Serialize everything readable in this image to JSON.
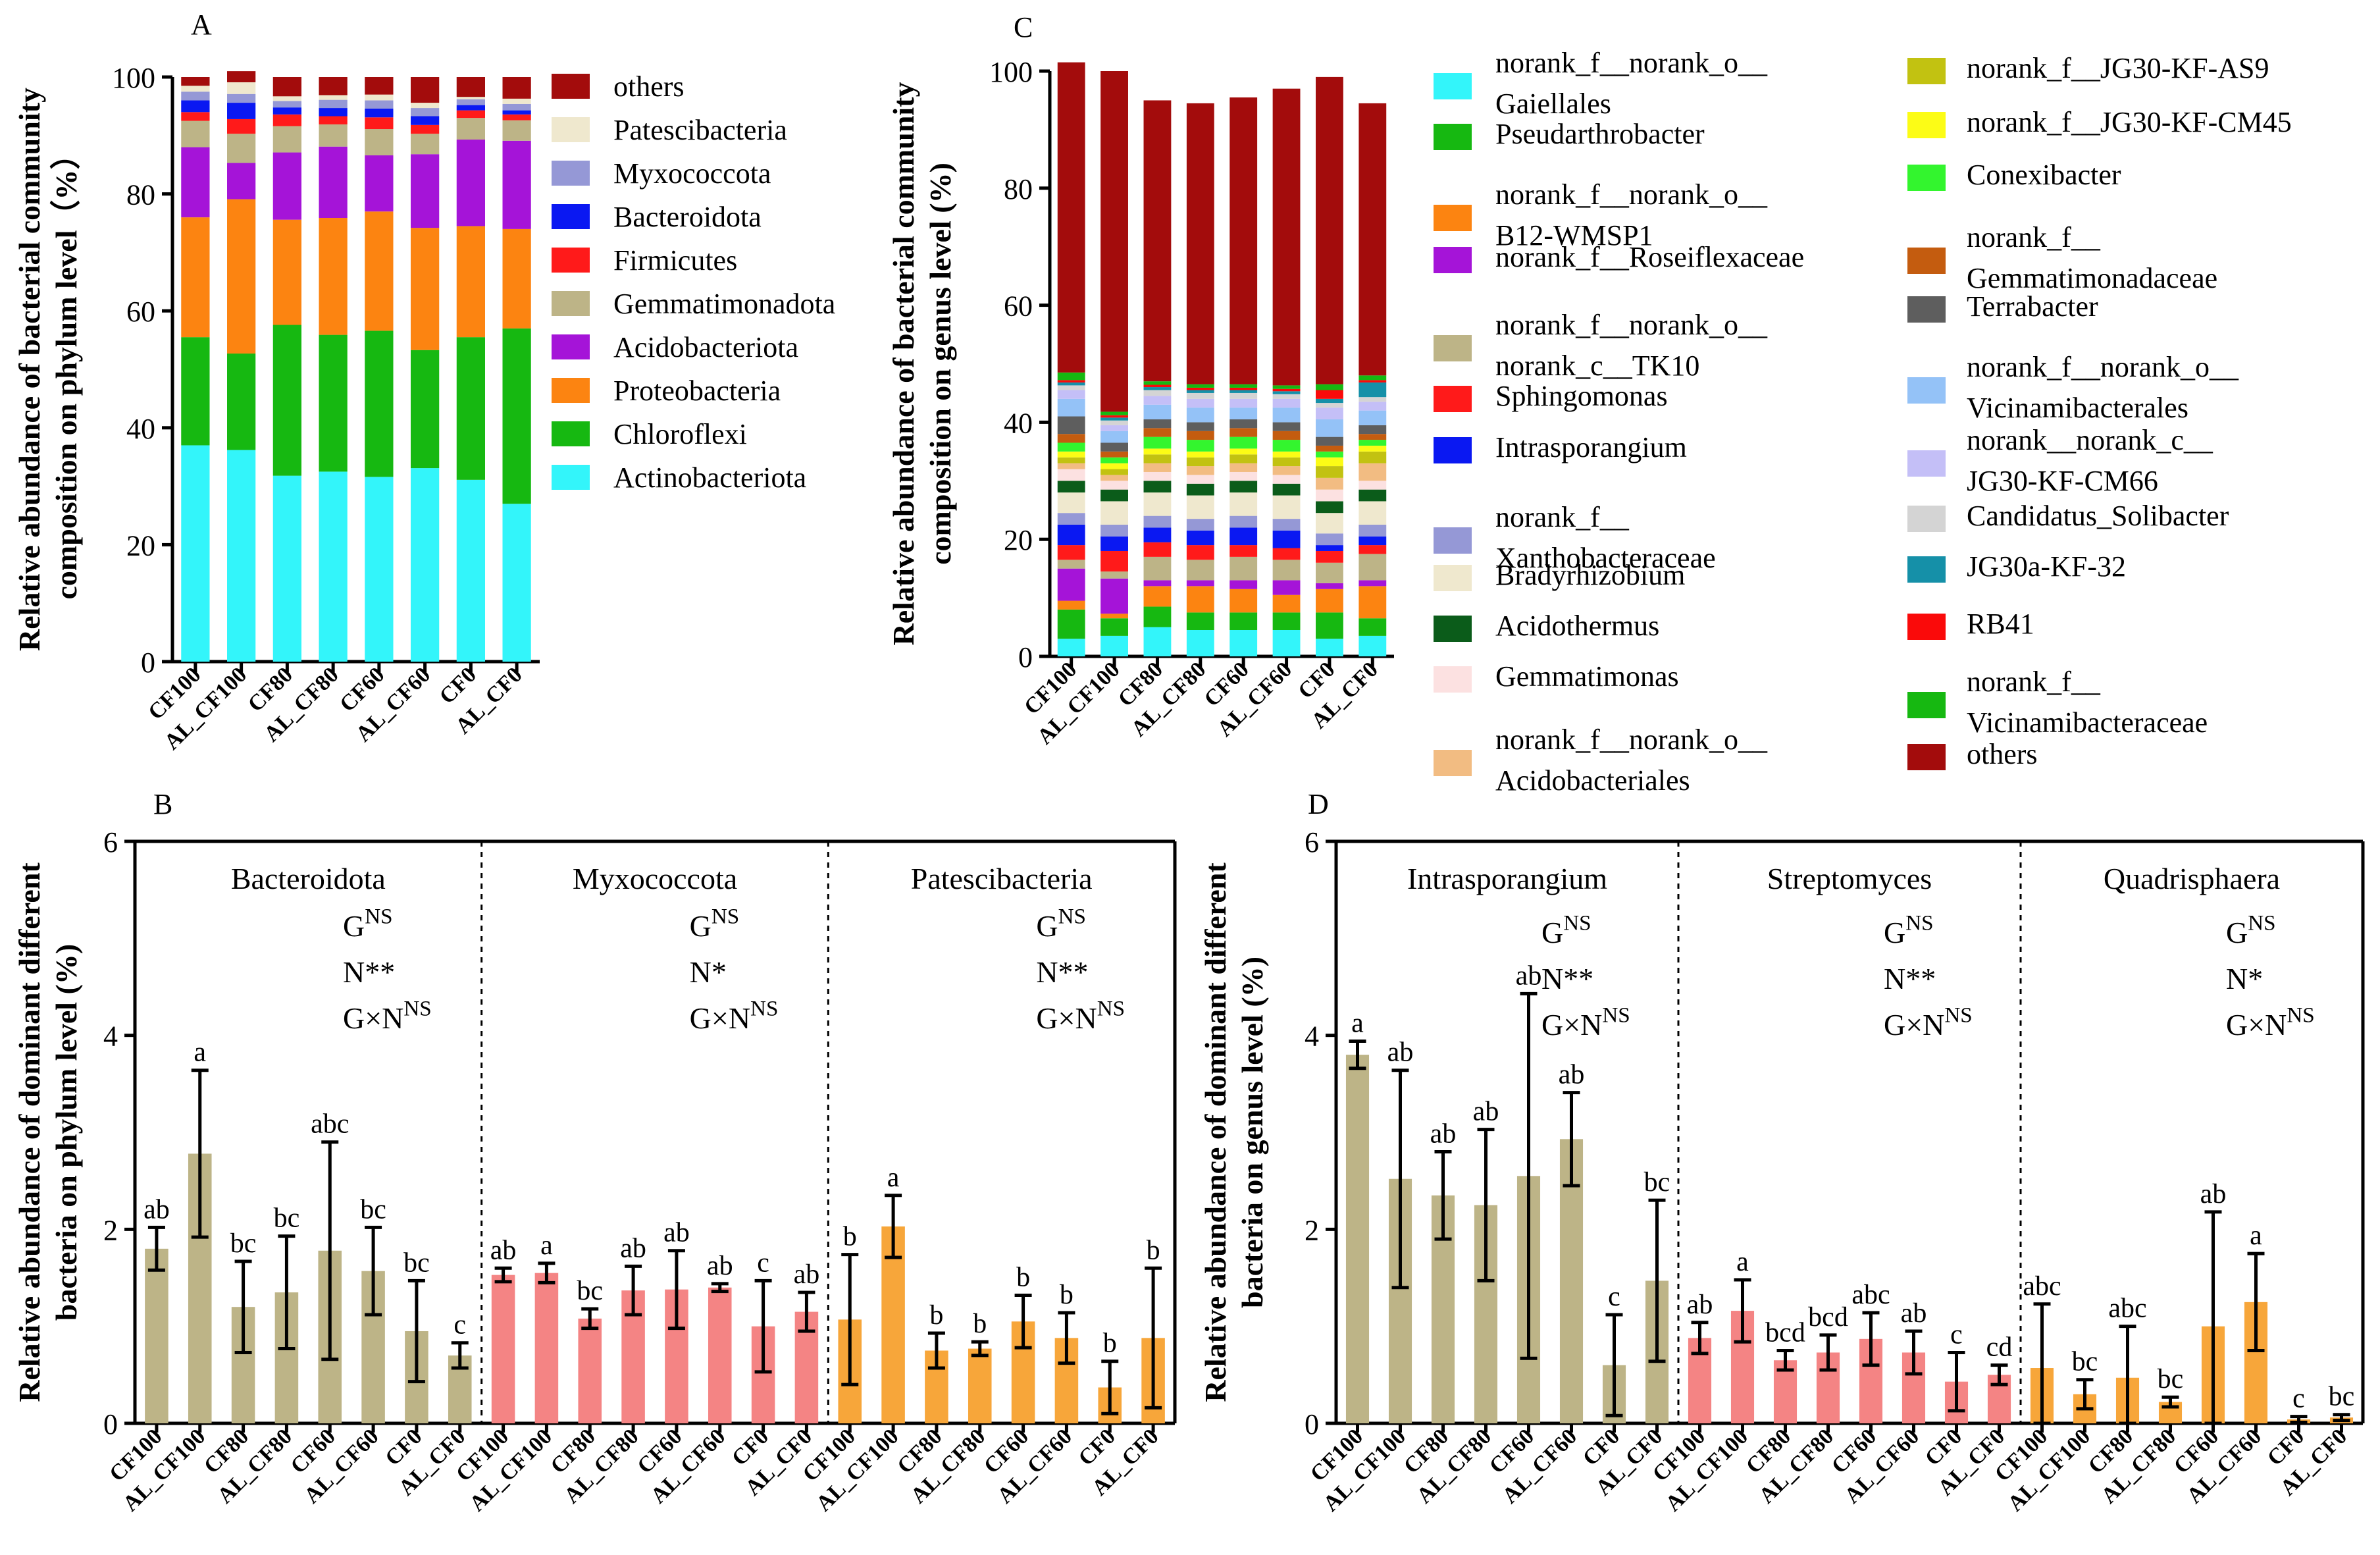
{
  "colors": {
    "errorbar": "#000000",
    "olive": "#BDB487",
    "pink": "#F48484",
    "orange": "#F7A63A"
  },
  "chart_data": [
    {
      "id": "A",
      "panel_label": "A",
      "type": "bar",
      "stacked": true,
      "title": "",
      "xlabel": "",
      "ylabel_line1": "Relative abundance of bacterial community",
      "ylabel_line2": "composition on phylum level（%）",
      "ylim": [
        0,
        100
      ],
      "yticks": [
        0,
        20,
        40,
        60,
        80,
        100
      ],
      "categories": [
        "CF100",
        "AL_CF100",
        "CF80",
        "AL_CF80",
        "CF60",
        "AL_CF60",
        "CF0",
        "AL_CF0"
      ],
      "series": [
        {
          "name": "Actinobacteriota",
          "color": "#33F5FA",
          "values": [
            37.0,
            36.2,
            31.8,
            32.5,
            31.6,
            33.1,
            31.1,
            27.0
          ]
        },
        {
          "name": "Chloroflexi",
          "color": "#16B811",
          "values": [
            18.5,
            16.5,
            25.8,
            23.4,
            25.0,
            20.2,
            24.4,
            30.0
          ]
        },
        {
          "name": "Proteobacteria",
          "color": "#FC8411",
          "values": [
            20.5,
            26.4,
            18.0,
            20.0,
            20.4,
            20.9,
            19.0,
            17.0
          ]
        },
        {
          "name": "Acidobacteriota",
          "color": "#A514D8",
          "values": [
            12.0,
            6.2,
            11.5,
            12.2,
            9.6,
            12.6,
            14.8,
            15.1
          ]
        },
        {
          "name": "Gemmatimonadota",
          "color": "#BDB487",
          "values": [
            4.5,
            5.0,
            4.5,
            3.8,
            4.5,
            3.5,
            3.7,
            3.5
          ]
        },
        {
          "name": "Firmicutes",
          "color": "#FF1A1A",
          "values": [
            1.5,
            2.5,
            2.0,
            1.4,
            2.0,
            1.5,
            1.3,
            1.0
          ]
        },
        {
          "name": "Bacteroidota",
          "color": "#0A18F2",
          "values": [
            2.0,
            2.8,
            1.2,
            1.4,
            1.5,
            1.5,
            0.9,
            0.7
          ]
        },
        {
          "name": "Myxococcota",
          "color": "#9598D6",
          "values": [
            1.5,
            1.5,
            1.1,
            1.4,
            1.4,
            1.4,
            1.0,
            1.1
          ]
        },
        {
          "name": "Patescibacteria",
          "color": "#EFE8CE",
          "values": [
            1.0,
            2.0,
            0.8,
            0.8,
            1.0,
            0.9,
            0.4,
            0.9
          ]
        },
        {
          "name": "others",
          "color": "#A30C0C",
          "values": [
            1.5,
            1.9,
            3.3,
            3.1,
            3.0,
            4.4,
            3.4,
            3.7
          ]
        }
      ],
      "legend_order": [
        "others",
        "Patescibacteria",
        "Myxococcota",
        "Bacteroidota",
        "Firmicutes",
        "Gemmatimonadota",
        "Acidobacteriota",
        "Proteobacteria",
        "Chloroflexi",
        "Actinobacteriota"
      ]
    },
    {
      "id": "C",
      "panel_label": "C",
      "type": "bar",
      "stacked": true,
      "title": "",
      "xlabel": "",
      "ylabel_line1": "Relative abundance of bacterial community",
      "ylabel_line2": "composition on genus level (%)",
      "ylim": [
        0,
        100
      ],
      "yticks": [
        0,
        20,
        40,
        60,
        80,
        100
      ],
      "categories": [
        "CF100",
        "AL_CF100",
        "CF80",
        "AL_CF80",
        "CF60",
        "AL_CF60",
        "CF0",
        "AL_CF0"
      ],
      "series": [
        {
          "name": "norank_f__norank_o__ Gaiellales",
          "color": "#33F5FA",
          "values": [
            3.0,
            3.5,
            5.0,
            4.5,
            4.5,
            4.5,
            3.0,
            3.5
          ]
        },
        {
          "name": "Pseudarthrobacter",
          "color": "#16B811",
          "values": [
            5.0,
            3.0,
            3.5,
            3.0,
            3.0,
            3.0,
            4.5,
            3.0
          ]
        },
        {
          "name": "norank_f__norank_o__ B12-WMSP1",
          "color": "#FC8411",
          "values": [
            1.5,
            0.8,
            3.5,
            4.5,
            4.0,
            3.0,
            4.0,
            5.5
          ]
        },
        {
          "name": "norank_f__Roseiflexaceae",
          "color": "#A514D8",
          "values": [
            5.5,
            6.0,
            1.0,
            1.0,
            1.5,
            2.5,
            1.0,
            1.0
          ]
        },
        {
          "name": "norank_f__norank_o__ norank_c__TK10",
          "color": "#BDB487",
          "values": [
            1.5,
            1.2,
            4.0,
            3.5,
            4.0,
            3.5,
            3.5,
            4.5
          ]
        },
        {
          "name": "Sphingomonas",
          "color": "#FF1A1A",
          "values": [
            2.5,
            3.5,
            2.5,
            2.5,
            2.0,
            2.0,
            2.0,
            1.5
          ]
        },
        {
          "name": "Intrasporangium",
          "color": "#0A18F2",
          "values": [
            3.5,
            2.5,
            2.5,
            2.5,
            3.0,
            3.0,
            1.0,
            1.5
          ]
        },
        {
          "name": "norank_f__ Xanthobacteraceae",
          "color": "#9598D6",
          "values": [
            2.0,
            2.0,
            2.0,
            2.0,
            2.0,
            2.0,
            2.0,
            2.0
          ]
        },
        {
          "name": "Bradyrhizobium",
          "color": "#EFE8CE",
          "values": [
            3.5,
            4.0,
            4.0,
            4.0,
            4.0,
            4.0,
            3.5,
            4.0
          ]
        },
        {
          "name": "Acidothermus",
          "color": "#0B5C1A",
          "values": [
            2.0,
            2.0,
            2.0,
            2.0,
            2.0,
            2.0,
            2.0,
            2.0
          ]
        },
        {
          "name": "Gemmatimonas",
          "color": "#FCE1E1",
          "values": [
            2.0,
            1.5,
            1.5,
            1.5,
            1.5,
            1.5,
            2.0,
            1.5
          ]
        },
        {
          "name": "norank_f__norank_o__ Acidobacteriales",
          "color": "#F2BC82",
          "values": [
            1.0,
            1.0,
            1.5,
            1.5,
            1.5,
            1.5,
            2.0,
            3.0
          ]
        },
        {
          "name": "norank_f__JG30-KF-AS9",
          "color": "#C2C211",
          "values": [
            1.0,
            1.0,
            1.5,
            1.5,
            1.5,
            1.5,
            2.0,
            2.0
          ]
        },
        {
          "name": "norank_f__JG30-KF-CM45",
          "color": "#FCFC16",
          "values": [
            1.0,
            1.0,
            1.0,
            1.0,
            1.0,
            1.0,
            1.5,
            1.0
          ]
        },
        {
          "name": "Conexibacter",
          "color": "#33F52E",
          "values": [
            1.5,
            1.0,
            2.0,
            2.0,
            2.0,
            2.0,
            1.0,
            1.0
          ]
        },
        {
          "name": "norank_f__ Gemmatimonadaceae",
          "color": "#C45C0F",
          "values": [
            1.5,
            1.0,
            1.5,
            1.5,
            1.5,
            1.5,
            1.0,
            1.0
          ]
        },
        {
          "name": "Terrabacter",
          "color": "#5E5E5E",
          "values": [
            3.0,
            1.5,
            1.5,
            1.5,
            1.5,
            1.5,
            1.5,
            1.5
          ]
        },
        {
          "name": "norank_f__norank_o__ Vicinamibacterales",
          "color": "#94C2F7",
          "values": [
            3.0,
            2.0,
            2.5,
            2.5,
            2.0,
            2.5,
            3.0,
            2.5
          ]
        },
        {
          "name": "norank__norank_c__ JG30-KF-CM66",
          "color": "#C4BFF7",
          "values": [
            1.5,
            1.0,
            1.5,
            1.5,
            1.5,
            1.5,
            2.0,
            1.5
          ]
        },
        {
          "name": "Candidatus_Solibacter",
          "color": "#D4D4D4",
          "values": [
            0.8,
            0.8,
            1.0,
            1.0,
            1.0,
            0.8,
            0.8,
            0.8
          ]
        },
        {
          "name": "JG30a-KF-32",
          "color": "#1590A8",
          "values": [
            0.5,
            0.5,
            0.5,
            0.5,
            0.5,
            0.5,
            0.7,
            2.5
          ]
        },
        {
          "name": "RB41",
          "color": "#FA0A0A",
          "values": [
            0.4,
            0.4,
            0.4,
            0.4,
            0.4,
            0.4,
            1.5,
            0.4
          ]
        },
        {
          "name": "norank_f__ Vicinamibacteraceae",
          "color": "#16B811",
          "values": [
            1.3,
            0.6,
            0.6,
            0.6,
            0.6,
            0.6,
            1.0,
            0.8
          ]
        },
        {
          "name": "others",
          "color": "#A30C0C",
          "values": [
            53.0,
            58.2,
            48.0,
            48.0,
            49.0,
            50.7,
            52.5,
            46.5
          ]
        }
      ],
      "legend_left": [
        {
          "line1": "norank_f__norank_o__",
          "line2": "Gaiellales",
          "color": "#33F5FA"
        },
        {
          "line1": "Pseudarthrobacter",
          "line2": "",
          "color": "#16B811"
        },
        {
          "line1": "norank_f__norank_o__",
          "line2": "B12-WMSP1",
          "color": "#FC8411"
        },
        {
          "line1": "norank_f__Roseiflexaceae",
          "line2": "",
          "color": "#A514D8"
        },
        {
          "line1": "norank_f__norank_o__",
          "line2": "norank_c__TK10",
          "color": "#BDB487"
        },
        {
          "line1": "Sphingomonas",
          "line2": "",
          "color": "#FF1A1A"
        },
        {
          "line1": "Intrasporangium",
          "line2": "",
          "color": "#0A18F2"
        },
        {
          "line1": "norank_f__",
          "line2": "Xanthobacteraceae",
          "color": "#9598D6"
        },
        {
          "line1": "Bradyrhizobium",
          "line2": "",
          "color": "#EFE8CE"
        },
        {
          "line1": "Acidothermus",
          "line2": "",
          "color": "#0B5C1A"
        },
        {
          "line1": "Gemmatimonas",
          "line2": "",
          "color": "#FCE1E1"
        },
        {
          "line1": "norank_f__norank_o__",
          "line2": "Acidobacteriales",
          "color": "#F2BC82"
        }
      ],
      "legend_right": [
        {
          "line1": "norank_f__JG30-KF-AS9",
          "line2": "",
          "color": "#C2C211"
        },
        {
          "line1": "norank_f__JG30-KF-CM45",
          "line2": "",
          "color": "#FCFC16"
        },
        {
          "line1": "Conexibacter",
          "line2": "",
          "color": "#33F52E"
        },
        {
          "line1": "norank_f__",
          "line2": "Gemmatimonadaceae",
          "color": "#C45C0F"
        },
        {
          "line1": "Terrabacter",
          "line2": "",
          "color": "#5E5E5E"
        },
        {
          "line1": "norank_f__norank_o__",
          "line2": "Vicinamibacterales",
          "color": "#94C2F7"
        },
        {
          "line1": "norank__norank_c__",
          "line2": "JG30-KF-CM66",
          "color": "#C4BFF7"
        },
        {
          "line1": "Candidatus_Solibacter",
          "line2": "",
          "color": "#D4D4D4"
        },
        {
          "line1": "JG30a-KF-32",
          "line2": "",
          "color": "#1590A8"
        },
        {
          "line1": "RB41",
          "line2": "",
          "color": "#FA0A0A"
        },
        {
          "line1": "norank_f__",
          "line2": "Vicinamibacteraceae",
          "color": "#16B811"
        },
        {
          "line1": "others",
          "line2": "",
          "color": "#A30C0C"
        }
      ]
    },
    {
      "id": "B",
      "panel_label": "B",
      "type": "bar",
      "title": "",
      "xlabel": "",
      "ylabel_line1": "Relative abundance of dominant different",
      "ylabel_line2": "bacteria  on phylum level (%)",
      "ylim": [
        0,
        6
      ],
      "yticks": [
        0,
        2,
        4,
        6
      ],
      "categories": [
        "CF100",
        "AL_CF100",
        "CF80",
        "AL_CF80",
        "CF60",
        "AL_CF60",
        "CF0",
        "AL_CF0"
      ],
      "groups": [
        {
          "name": "Bacteroidota",
          "color": "#BDB487",
          "values": [
            1.8,
            2.78,
            1.2,
            1.35,
            1.78,
            1.57,
            0.95,
            0.7
          ],
          "errors": [
            0.22,
            0.86,
            0.47,
            0.58,
            1.12,
            0.45,
            0.52,
            0.13
          ],
          "letters": [
            "ab",
            "a",
            "bc",
            "bc",
            "abc",
            "bc",
            "bc",
            "c"
          ],
          "stats": {
            "G": "G",
            "G_sup": "NS",
            "N": "N**",
            "N_sup": "",
            "GxN": "G×N",
            "GxN_sup": "NS"
          }
        },
        {
          "name": "Myxococcota",
          "color": "#F48484",
          "values": [
            1.53,
            1.55,
            1.08,
            1.37,
            1.38,
            1.4,
            1.0,
            1.15
          ],
          "errors": [
            0.07,
            0.1,
            0.1,
            0.25,
            0.4,
            0.04,
            0.47,
            0.2
          ],
          "letters": [
            "ab",
            "a",
            "bc",
            "ab",
            "ab",
            "ab",
            "c",
            "ab"
          ],
          "stats": {
            "G": "G",
            "G_sup": "NS",
            "N": "N*",
            "N_sup": "",
            "GxN": "G×N",
            "GxN_sup": "NS"
          }
        },
        {
          "name": "Patescibacteria",
          "color": "#F7A63A",
          "values": [
            1.07,
            2.03,
            0.75,
            0.77,
            1.05,
            0.88,
            0.37,
            0.88
          ],
          "errors": [
            0.67,
            0.32,
            0.18,
            0.07,
            0.27,
            0.26,
            0.27,
            0.72
          ],
          "letters": [
            "b",
            "a",
            "b",
            "b",
            "b",
            "b",
            "b",
            "b"
          ],
          "stats": {
            "G": "G",
            "G_sup": "NS",
            "N": "N**",
            "N_sup": "",
            "GxN": "G×N",
            "GxN_sup": "NS"
          }
        }
      ]
    },
    {
      "id": "D",
      "panel_label": "D",
      "type": "bar",
      "title": "",
      "xlabel": "",
      "ylabel_line1": "Relative abundance of dominant different",
      "ylabel_line2": "bacteria on genus  level (%)",
      "ylim": [
        0,
        6
      ],
      "yticks": [
        0,
        2,
        4,
        6
      ],
      "categories": [
        "CF100",
        "AL_CF100",
        "CF80",
        "AL_CF80",
        "CF60",
        "AL_CF60",
        "CF0",
        "AL_CF0"
      ],
      "groups": [
        {
          "name": "Intrasporangium",
          "color": "#BDB487",
          "values": [
            3.8,
            2.52,
            2.35,
            2.25,
            2.55,
            2.93,
            0.6,
            1.47
          ],
          "errors": [
            0.14,
            1.12,
            0.45,
            0.78,
            1.88,
            0.48,
            0.52,
            0.83
          ],
          "letters": [
            "a",
            "ab",
            "ab",
            "ab",
            "ab",
            "ab",
            "c",
            "bc"
          ],
          "stats": {
            "G": "G",
            "G_sup": "NS",
            "N": "N**",
            "N_sup": "",
            "GxN": "G×N",
            "GxN_sup": "NS"
          }
        },
        {
          "name": "Streptomyces",
          "color": "#F48484",
          "values": [
            0.88,
            1.16,
            0.65,
            0.73,
            0.87,
            0.73,
            0.43,
            0.5
          ],
          "errors": [
            0.16,
            0.32,
            0.1,
            0.18,
            0.27,
            0.22,
            0.3,
            0.1
          ],
          "letters": [
            "ab",
            "a",
            "bcd",
            "bcd",
            "abc",
            "ab",
            "c",
            "cd"
          ],
          "stats": {
            "G": "G",
            "G_sup": "NS",
            "N": "N**",
            "N_sup": "",
            "GxN": "G×N",
            "GxN_sup": "NS"
          }
        },
        {
          "name": "Quadrisphaera",
          "color": "#F7A63A",
          "values": [
            0.57,
            0.3,
            0.47,
            0.22,
            1.0,
            1.25,
            0.04,
            0.06
          ],
          "errors": [
            0.66,
            0.15,
            0.53,
            0.05,
            1.18,
            0.5,
            0.03,
            0.03
          ],
          "letters": [
            "abc",
            "bc",
            "abc",
            "bc",
            "ab",
            "a",
            "c",
            "bc"
          ],
          "stats": {
            "G": "G",
            "G_sup": "NS",
            "N": "N*",
            "N_sup": "",
            "GxN": "G×N",
            "GxN_sup": "NS"
          }
        }
      ]
    }
  ]
}
